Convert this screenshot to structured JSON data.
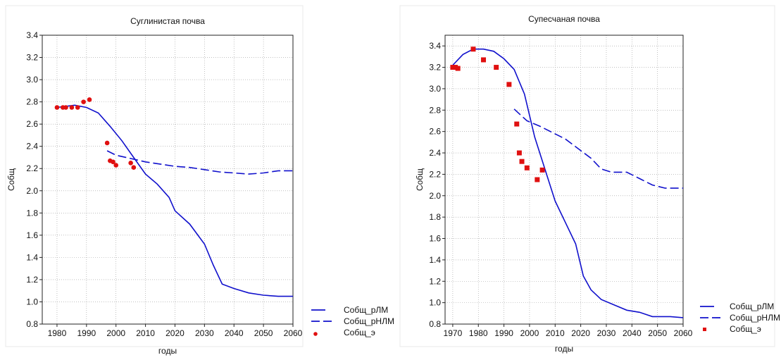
{
  "chart_data": [
    {
      "type": "line",
      "title": "Суглинистая почва",
      "xlabel": "годы",
      "ylabel": "Собщ",
      "xlim": [
        1975,
        2060
      ],
      "ylim": [
        0.8,
        3.4
      ],
      "xticks": [
        1980,
        1990,
        2000,
        2010,
        2020,
        2030,
        2040,
        2050,
        2060
      ],
      "yticks": [
        0.8,
        1.0,
        1.2,
        1.4,
        1.6,
        1.8,
        2.0,
        2.2,
        2.4,
        2.6,
        2.8,
        3.0,
        3.2,
        3.4
      ],
      "grid": true,
      "legend_position": "bottom-right, outside plot",
      "series": [
        {
          "name": "Собщ_рЛМ",
          "kind": "line",
          "style": "solid",
          "color": "#1010cc",
          "points": [
            [
              1980,
              2.75
            ],
            [
              1983,
              2.76
            ],
            [
              1986,
              2.77
            ],
            [
              1990,
              2.75
            ],
            [
              1994,
              2.7
            ],
            [
              1998,
              2.58
            ],
            [
              2002,
              2.45
            ],
            [
              2006,
              2.3
            ],
            [
              2010,
              2.15
            ],
            [
              2014,
              2.06
            ],
            [
              2018,
              1.94
            ],
            [
              2020,
              1.82
            ],
            [
              2025,
              1.7
            ],
            [
              2030,
              1.52
            ],
            [
              2033,
              1.33
            ],
            [
              2036,
              1.16
            ],
            [
              2040,
              1.12
            ],
            [
              2045,
              1.08
            ],
            [
              2050,
              1.06
            ],
            [
              2055,
              1.05
            ],
            [
              2060,
              1.05
            ]
          ]
        },
        {
          "name": "Собщ_рНЛМ",
          "kind": "line",
          "style": "dashed",
          "color": "#1010cc",
          "points": [
            [
              1997,
              2.36
            ],
            [
              2000,
              2.32
            ],
            [
              2005,
              2.29
            ],
            [
              2010,
              2.26
            ],
            [
              2015,
              2.24
            ],
            [
              2020,
              2.22
            ],
            [
              2025,
              2.21
            ],
            [
              2030,
              2.19
            ],
            [
              2035,
              2.17
            ],
            [
              2040,
              2.16
            ],
            [
              2045,
              2.15
            ],
            [
              2050,
              2.16
            ],
            [
              2055,
              2.18
            ],
            [
              2060,
              2.18
            ]
          ]
        },
        {
          "name": "Собщ_э",
          "kind": "scatter",
          "marker": "circle",
          "color": "#e01010",
          "points": [
            [
              1980,
              2.75
            ],
            [
              1982,
              2.75
            ],
            [
              1983,
              2.75
            ],
            [
              1985,
              2.75
            ],
            [
              1987,
              2.75
            ],
            [
              1989,
              2.8
            ],
            [
              1991,
              2.82
            ],
            [
              1997,
              2.43
            ],
            [
              1998,
              2.27
            ],
            [
              1999,
              2.26
            ],
            [
              2000,
              2.23
            ],
            [
              2005,
              2.25
            ],
            [
              2006,
              2.21
            ]
          ]
        }
      ]
    },
    {
      "type": "line",
      "title": "Супесчаная почва",
      "xlabel": "годы",
      "ylabel": "Собщ",
      "xlim": [
        1967,
        2060
      ],
      "ylim": [
        0.8,
        3.5
      ],
      "xticks": [
        1970,
        1980,
        1990,
        2000,
        2010,
        2020,
        2030,
        2040,
        2050,
        2060
      ],
      "yticks": [
        0.8,
        1.0,
        1.2,
        1.4,
        1.6,
        1.8,
        2.0,
        2.2,
        2.4,
        2.6,
        2.8,
        3.0,
        3.2,
        3.4
      ],
      "grid": true,
      "legend_position": "bottom-right, outside plot",
      "series": [
        {
          "name": "Собщ_рЛМ",
          "kind": "line",
          "style": "solid",
          "color": "#1010cc",
          "points": [
            [
              1970,
              3.22
            ],
            [
              1974,
              3.32
            ],
            [
              1978,
              3.37
            ],
            [
              1982,
              3.37
            ],
            [
              1986,
              3.35
            ],
            [
              1990,
              3.28
            ],
            [
              1994,
              3.18
            ],
            [
              1998,
              2.95
            ],
            [
              2002,
              2.55
            ],
            [
              2006,
              2.25
            ],
            [
              2010,
              1.95
            ],
            [
              2014,
              1.75
            ],
            [
              2018,
              1.55
            ],
            [
              2021,
              1.25
            ],
            [
              2024,
              1.12
            ],
            [
              2028,
              1.03
            ],
            [
              2033,
              0.98
            ],
            [
              2038,
              0.93
            ],
            [
              2043,
              0.91
            ],
            [
              2048,
              0.87
            ],
            [
              2055,
              0.87
            ],
            [
              2060,
              0.86
            ]
          ]
        },
        {
          "name": "Собщ_рНЛМ",
          "kind": "line",
          "style": "dashed",
          "color": "#1010cc",
          "points": [
            [
              1994,
              2.81
            ],
            [
              1999,
              2.7
            ],
            [
              2004,
              2.65
            ],
            [
              2009,
              2.59
            ],
            [
              2014,
              2.53
            ],
            [
              2019,
              2.44
            ],
            [
              2024,
              2.35
            ],
            [
              2028,
              2.25
            ],
            [
              2032,
              2.22
            ],
            [
              2038,
              2.22
            ],
            [
              2043,
              2.16
            ],
            [
              2048,
              2.1
            ],
            [
              2053,
              2.07
            ],
            [
              2060,
              2.07
            ]
          ]
        },
        {
          "name": "Собщ_э",
          "kind": "scatter",
          "marker": "square",
          "color": "#e01010",
          "points": [
            [
              1970,
              3.2
            ],
            [
              1971,
              3.2
            ],
            [
              1972,
              3.19
            ],
            [
              1978,
              3.37
            ],
            [
              1982,
              3.27
            ],
            [
              1987,
              3.2
            ],
            [
              1992,
              3.04
            ],
            [
              1995,
              2.67
            ],
            [
              1996,
              2.4
            ],
            [
              1997,
              2.32
            ],
            [
              1999,
              2.26
            ],
            [
              2003,
              2.15
            ],
            [
              2005,
              2.24
            ]
          ]
        }
      ]
    }
  ]
}
